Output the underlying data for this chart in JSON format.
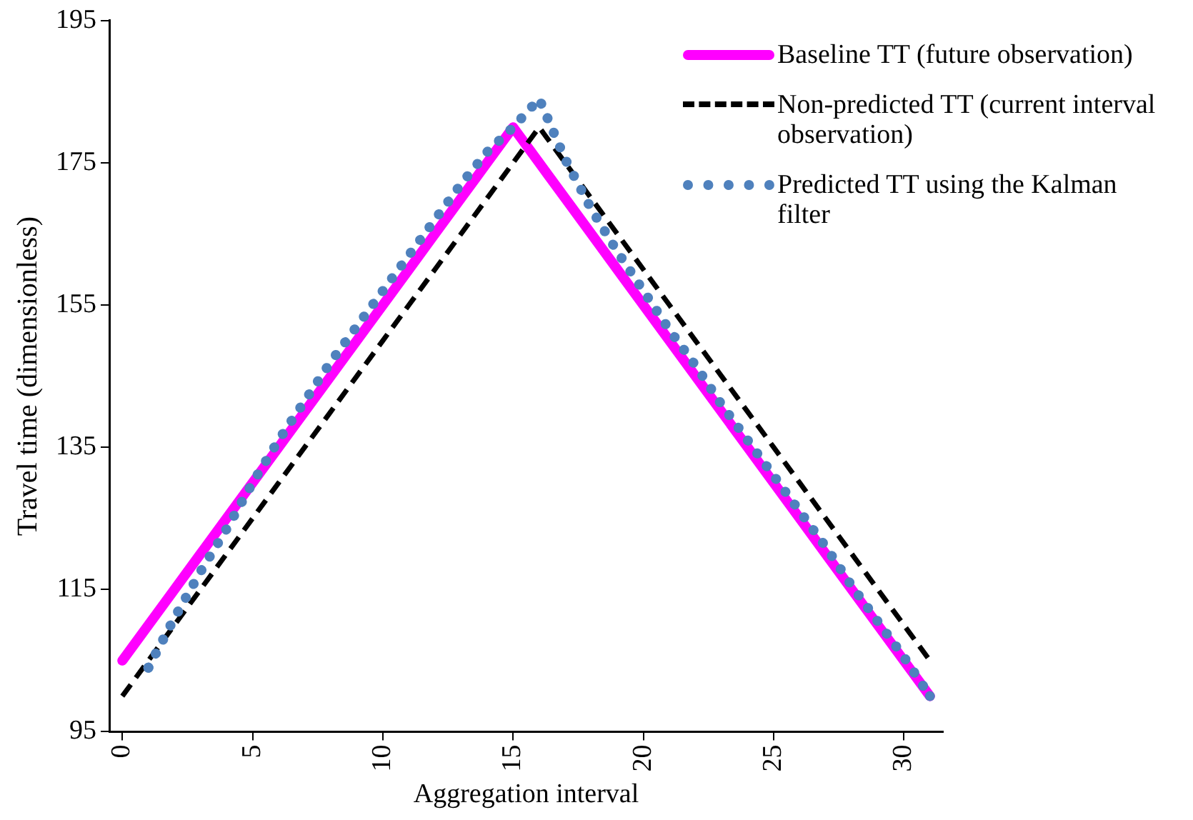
{
  "chart_data": {
    "type": "line",
    "xlabel": "Aggregation interval",
    "ylabel": "Travel time (dimensionless)",
    "x": [
      0,
      1,
      2,
      3,
      4,
      5,
      6,
      7,
      8,
      9,
      10,
      11,
      12,
      13,
      14,
      15,
      16,
      17,
      18,
      19,
      20,
      21,
      22,
      23,
      24,
      25,
      26,
      27,
      28,
      29,
      30,
      31
    ],
    "xlim": [
      -0.5,
      31.5
    ],
    "xticks": [
      0,
      5,
      10,
      15,
      20,
      25,
      30
    ],
    "ylim": [
      95,
      195
    ],
    "yticks": [
      95,
      115,
      135,
      155,
      175,
      195
    ],
    "grid": false,
    "legend": "top right",
    "marker": "none",
    "series": [
      {
        "name": "Baseline TT (future observation)",
        "color": "#ff00ff",
        "line_style": "solid",
        "values": [
          105,
          110,
          115,
          120,
          125,
          130,
          135,
          140,
          145,
          150,
          155,
          160,
          165,
          170,
          175,
          180,
          175,
          170,
          165,
          160,
          155,
          150,
          145,
          140,
          135,
          130,
          125,
          120,
          115,
          110,
          105,
          100
        ]
      },
      {
        "name": "Non-predicted TT (current interval observation)",
        "color": "#000000",
        "line_style": "dashed",
        "values": [
          100,
          105,
          110,
          115,
          120,
          125,
          130,
          135,
          140,
          145,
          150,
          155,
          160,
          165,
          170,
          175,
          180,
          175,
          170,
          165,
          160,
          155,
          150,
          145,
          140,
          135,
          130,
          125,
          120,
          115,
          110,
          105
        ]
      },
      {
        "name": "Predicted TT using the Kalman filter",
        "color": "#4f81bd",
        "line_style": "dotted",
        "values": [
          null,
          104,
          111,
          117.5,
          123.5,
          130,
          136,
          141.5,
          147,
          152,
          157,
          162,
          167,
          172,
          176.5,
          180,
          184,
          175.5,
          168.5,
          162.5,
          157,
          151.5,
          146.5,
          141,
          136,
          131,
          126,
          121,
          115.5,
          110.5,
          105.5,
          100
        ]
      }
    ]
  }
}
